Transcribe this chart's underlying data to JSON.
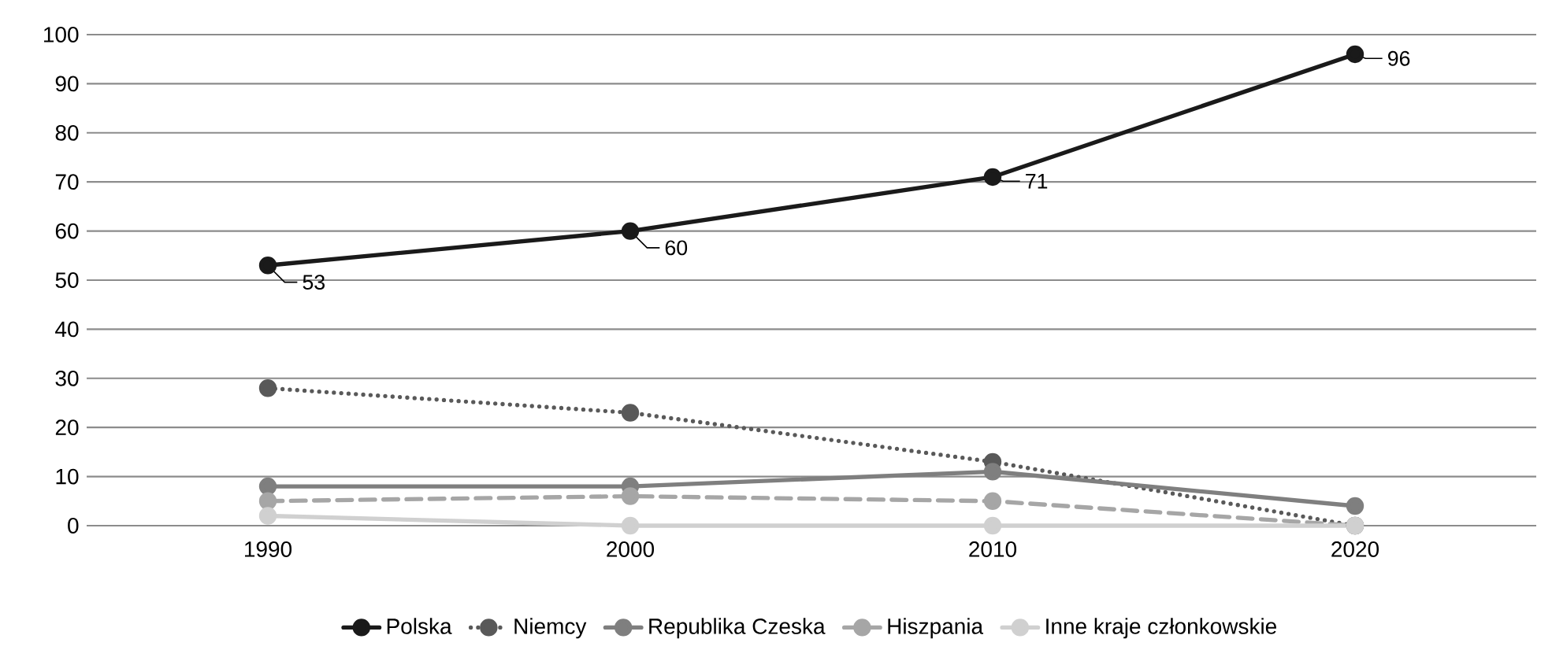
{
  "chart_data": {
    "type": "line",
    "categories": [
      "1990",
      "2000",
      "2010",
      "2020"
    ],
    "series": [
      {
        "name": "Polska",
        "color": "#1a1a1a",
        "line_style": "solid",
        "values": [
          53,
          60,
          71,
          96
        ],
        "value_labels": [
          "53",
          "60",
          "71",
          "96"
        ]
      },
      {
        "name": "Niemcy",
        "color": "#595959",
        "line_style": "dotted",
        "values": [
          28,
          23,
          13,
          0
        ]
      },
      {
        "name": "Republika Czeska",
        "color": "#7f7f7f",
        "line_style": "solid",
        "values": [
          8,
          8,
          11,
          4
        ]
      },
      {
        "name": "Hiszpania",
        "color": "#a6a6a6",
        "line_style": "dashed",
        "values": [
          5,
          6,
          5,
          0
        ]
      },
      {
        "name": "Inne kraje członkowskie",
        "color": "#d0d0d0",
        "line_style": "solid",
        "values": [
          2,
          0,
          0,
          0
        ]
      }
    ],
    "ylim": [
      0,
      100
    ],
    "yticks": [
      0,
      10,
      20,
      30,
      40,
      50,
      60,
      70,
      80,
      90,
      100
    ],
    "grid": "y",
    "legend": "bottom",
    "marker": "circle"
  }
}
